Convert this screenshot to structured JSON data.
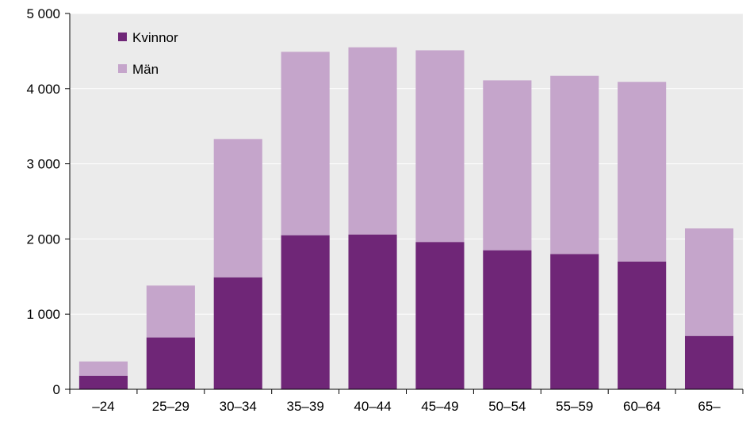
{
  "chart_data": {
    "type": "bar",
    "stacked": true,
    "categories": [
      "–24",
      "25–29",
      "30–34",
      "35–39",
      "40–44",
      "45–49",
      "50–54",
      "55–59",
      "60–64",
      "65–"
    ],
    "series": [
      {
        "name": "Kvinnor",
        "color": "#6f2677",
        "values": [
          180,
          690,
          1490,
          2050,
          2060,
          1960,
          1850,
          1800,
          1700,
          710
        ]
      },
      {
        "name": "Män",
        "color": "#c5a5cb",
        "values": [
          190,
          690,
          1840,
          2440,
          2490,
          2550,
          2260,
          2370,
          2390,
          1430
        ]
      }
    ],
    "y_ticks": [
      0,
      1000,
      2000,
      3000,
      4000,
      5000
    ],
    "y_tick_labels": [
      "0",
      "1 000",
      "2 000",
      "3 000",
      "4 000",
      "5 000"
    ],
    "ylim": [
      0,
      5000
    ],
    "title": "",
    "xlabel": "",
    "ylabel": "",
    "grid": true,
    "legend_position": "top-left",
    "plot_background": "#ebebeb",
    "grid_color": "#ffffff"
  }
}
